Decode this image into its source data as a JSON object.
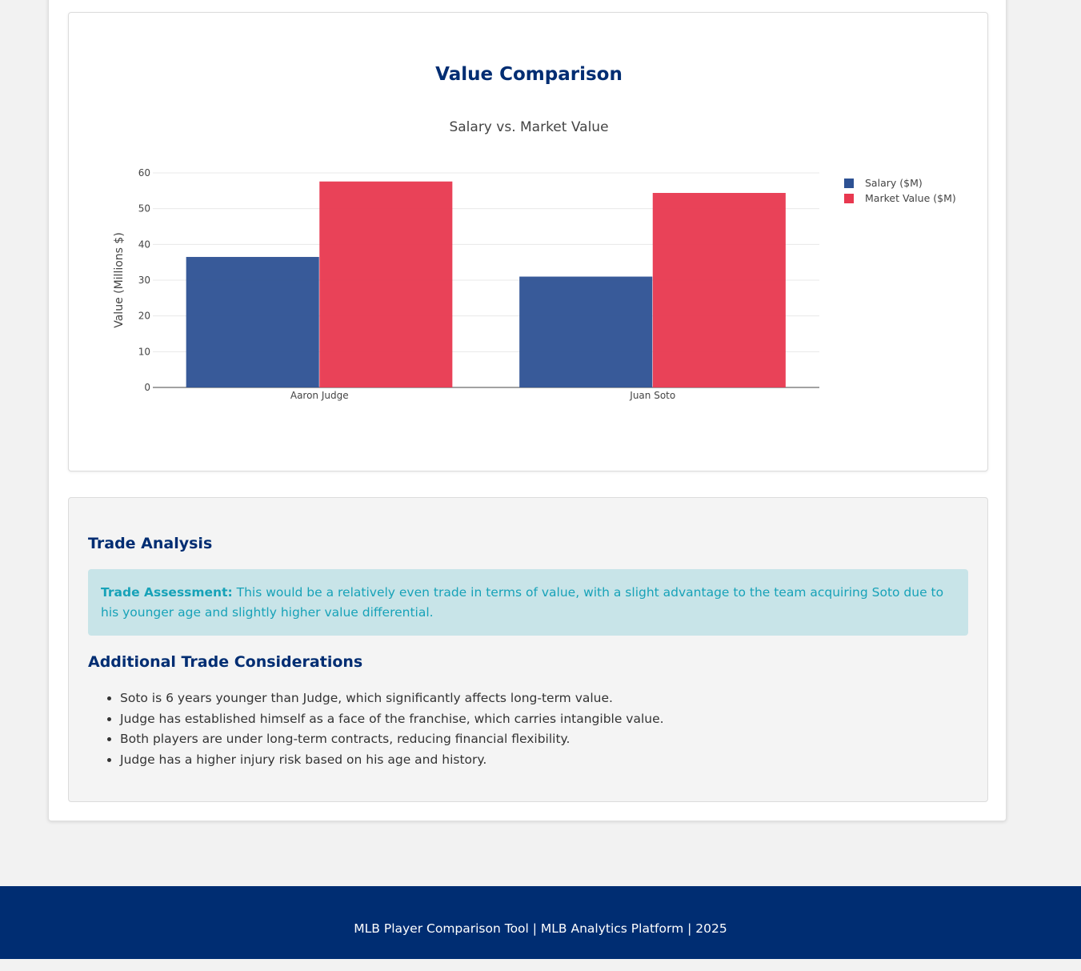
{
  "chart_section": {
    "heading": "Value Comparison"
  },
  "chart_data": {
    "type": "bar",
    "title": "Salary vs. Market Value",
    "xlabel": "",
    "ylabel": "Value (Millions $)",
    "categories": [
      "Aaron Judge",
      "Juan Soto"
    ],
    "series": [
      {
        "name": "Salary ($M)",
        "values": [
          36.5,
          31.0
        ],
        "color": "#2d5193"
      },
      {
        "name": "Market Value ($M)",
        "values": [
          57.6,
          54.4
        ],
        "color": "#e8384f"
      }
    ],
    "ylim": [
      0,
      60
    ],
    "yticks": [
      0,
      10,
      20,
      30,
      40,
      50,
      60
    ],
    "grid": true,
    "legend_position": "top-right"
  },
  "analysis": {
    "heading": "Trade Analysis",
    "assessment_label": "Trade Assessment:",
    "assessment_text": "This would be a relatively even trade in terms of value, with a slight advantage to the team acquiring Soto due to his younger age and slightly higher value differential.",
    "considerations_heading": "Additional Trade Considerations",
    "considerations": [
      "Soto is 6 years younger than Judge, which significantly affects long-term value.",
      "Judge has established himself as a face of the franchise, which carries intangible value.",
      "Both players are under long-term contracts, reducing financial flexibility.",
      "Judge has a higher injury risk based on his age and history."
    ]
  },
  "footer": {
    "text": "MLB Player Comparison Tool | MLB Analytics Platform | 2025"
  },
  "colors": {
    "navy": "#002d72",
    "alert_bg": "#c8e4e8",
    "alert_text": "#17a2b8"
  }
}
